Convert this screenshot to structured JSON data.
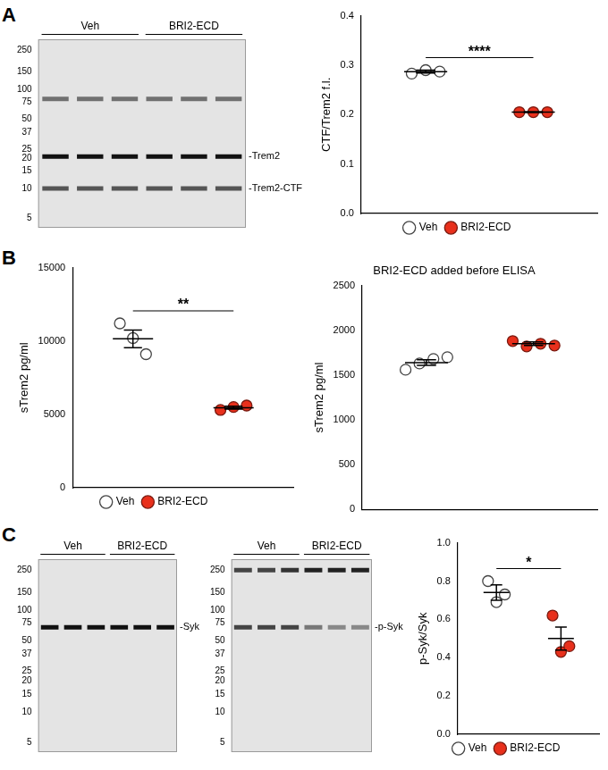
{
  "chart_data": [
    {
      "panel": "A",
      "type": "blot",
      "groups": [
        {
          "name": "Veh",
          "lanes": 3
        },
        {
          "name": "BRI2-ECD",
          "lanes": 3
        }
      ],
      "log": "y",
      "ylim": [
        4,
        320
      ],
      "yticks": [
        250,
        150,
        100,
        75,
        50,
        37,
        25,
        20,
        15,
        10,
        5
      ],
      "bands": [
        {
          "label": null,
          "kDa": 80,
          "color": "#707070"
        },
        {
          "label": "-Trem2",
          "kDa": 21,
          "color": "#111111"
        },
        {
          "label": "-Trem2-CTF",
          "kDa": 10,
          "color": "#555555"
        }
      ]
    },
    {
      "type": "dot",
      "y_label": "CTF/Trem2 f.l.",
      "ylim": [
        0,
        0.4
      ],
      "yticks": [
        {
          "value": 0,
          "label": "0.0"
        },
        0.1,
        0.2,
        0.3,
        0.4
      ],
      "significance": "****",
      "legend": "bottom",
      "grid": false,
      "tick_labels": "y",
      "series": [
        {
          "name": "Veh",
          "color": "#444444",
          "marker": "open_circle",
          "values": [
            0.283,
            0.29,
            0.287
          ],
          "mean": 0.287,
          "error": 0.003
        },
        {
          "name": "BRI2-ECD",
          "color": "#e8301c",
          "marker": "circle",
          "values": [
            0.205,
            0.205,
            0.205
          ],
          "mean": 0.205,
          "error": 0.001
        }
      ]
    },
    {
      "panel": "B",
      "type": "dot",
      "y_label": "sTrem2 pg/ml",
      "ylim": [
        0,
        15000
      ],
      "yticks": [
        0,
        5000,
        10000,
        15000
      ],
      "significance": "**",
      "legend": "bottom",
      "grid": false,
      "tick_labels": "y",
      "series": [
        {
          "name": "Veh",
          "color": "#444444",
          "marker": "open_circle",
          "values": [
            11200,
            10200,
            9100
          ],
          "mean": 10150,
          "error": 600
        },
        {
          "name": "BRI2-ECD",
          "color": "#e8301c",
          "marker": "circle",
          "values": [
            5300,
            5500,
            5600
          ],
          "mean": 5450,
          "error": 100
        }
      ]
    },
    {
      "type": "dot",
      "title": "BRI2-ECD added before ELISA",
      "y_label": "sTrem2 pg/ml",
      "ylim": [
        0,
        2500
      ],
      "yticks": [
        0,
        500,
        1000,
        1500,
        2000,
        2500
      ],
      "grid": false,
      "tick_labels": "y",
      "series": [
        {
          "name": "Veh",
          "color": "#444444",
          "marker": "open_circle",
          "values": [
            1560,
            1630,
            1680,
            1700
          ],
          "mean": 1640,
          "error": 30
        },
        {
          "name": "BRI2-ECD",
          "color": "#e8301c",
          "marker": "circle",
          "values": [
            1880,
            1820,
            1850,
            1830
          ],
          "mean": 1850,
          "error": 20
        }
      ]
    },
    {
      "panel": "C",
      "type": "blot",
      "groups": [
        {
          "name": "Veh",
          "lanes": 3
        },
        {
          "name": "BRI2-ECD",
          "lanes": 3
        }
      ],
      "log": "y",
      "ylim": [
        4,
        320
      ],
      "yticks": [
        250,
        150,
        100,
        75,
        50,
        37,
        25,
        20,
        15,
        10,
        5
      ],
      "bands": [
        {
          "label": "-Syk",
          "kDa": 68,
          "color": "#111111"
        }
      ]
    },
    {
      "type": "blot",
      "groups": [
        {
          "name": "Veh",
          "lanes": 3
        },
        {
          "name": "BRI2-ECD",
          "lanes": 3
        }
      ],
      "log": "y",
      "ylim": [
        4,
        320
      ],
      "yticks": [
        250,
        150,
        100,
        75,
        50,
        37,
        25,
        20,
        15,
        10,
        5
      ],
      "bands": [
        {
          "label": null,
          "kDa": 250,
          "colors": [
            "#444444",
            "#444444",
            "#333333",
            "#222222",
            "#222222",
            "#222222"
          ]
        },
        {
          "label": "-p-Syk",
          "kDa": 68,
          "colors": [
            "#444444",
            "#444444",
            "#444444",
            "#777777",
            "#888888",
            "#888888"
          ]
        }
      ]
    },
    {
      "type": "dot",
      "y_label": "p-Syk/Syk",
      "ylim": [
        0,
        1
      ],
      "yticks": [
        {
          "value": 0,
          "label": "0.0"
        },
        0.2,
        0.4,
        0.6,
        0.8,
        {
          "value": 1,
          "label": "1.0"
        }
      ],
      "significance": "*",
      "legend": "bottom",
      "grid": false,
      "tick_labels": "y",
      "series": [
        {
          "name": "Veh",
          "color": "#444444",
          "marker": "open_circle",
          "values": [
            0.8,
            0.69,
            0.73
          ],
          "mean": 0.74,
          "error": 0.04
        },
        {
          "name": "BRI2-ECD",
          "color": "#e8301c",
          "marker": "circle",
          "values": [
            0.62,
            0.43,
            0.46
          ],
          "mean": 0.5,
          "error": 0.06
        }
      ]
    }
  ]
}
